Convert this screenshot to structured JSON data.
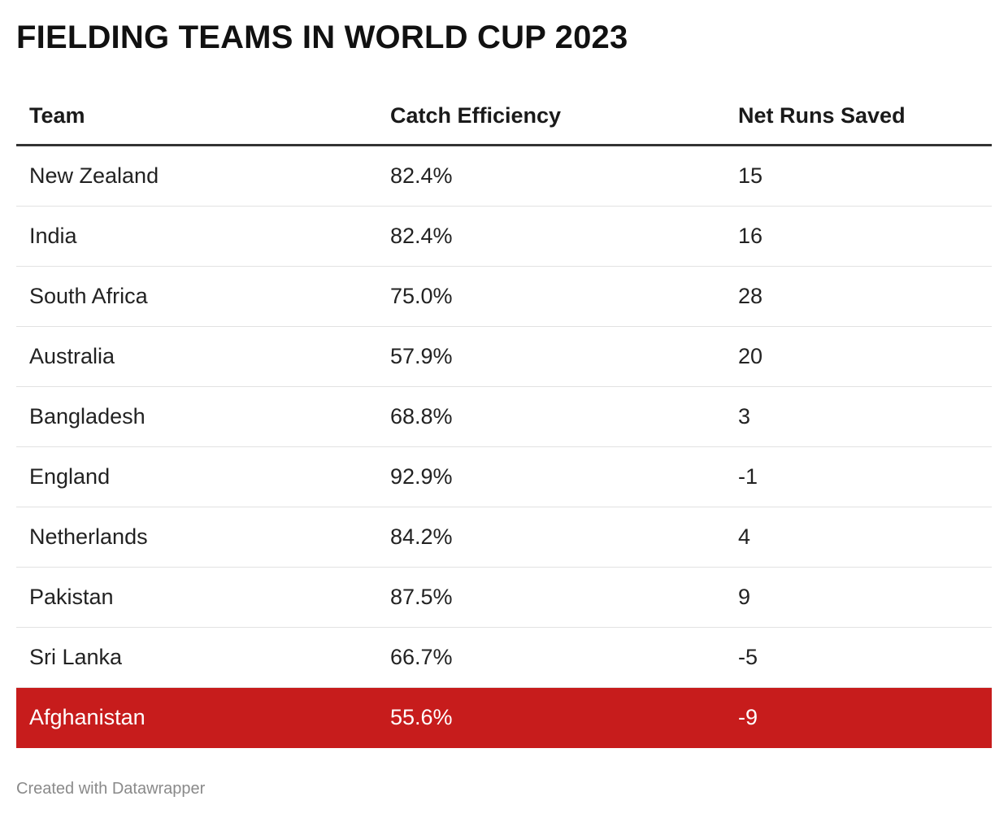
{
  "title": "FIELDING TEAMS IN WORLD CUP 2023",
  "footer": "Created with Datawrapper",
  "highlight_color": "#c71c1c",
  "chart_data": {
    "type": "table",
    "columns": [
      "Team",
      "Catch Efficiency",
      "Net Runs Saved"
    ],
    "rows": [
      {
        "team": "New Zealand",
        "catch_efficiency": "82.4%",
        "net_runs_saved": "15",
        "highlight": false
      },
      {
        "team": "India",
        "catch_efficiency": "82.4%",
        "net_runs_saved": "16",
        "highlight": false
      },
      {
        "team": "South Africa",
        "catch_efficiency": "75.0%",
        "net_runs_saved": "28",
        "highlight": false
      },
      {
        "team": "Australia",
        "catch_efficiency": "57.9%",
        "net_runs_saved": "20",
        "highlight": false
      },
      {
        "team": "Bangladesh",
        "catch_efficiency": "68.8%",
        "net_runs_saved": "3",
        "highlight": false
      },
      {
        "team": "England",
        "catch_efficiency": "92.9%",
        "net_runs_saved": "-1",
        "highlight": false
      },
      {
        "team": "Netherlands",
        "catch_efficiency": "84.2%",
        "net_runs_saved": "4",
        "highlight": false
      },
      {
        "team": "Pakistan",
        "catch_efficiency": "87.5%",
        "net_runs_saved": "9",
        "highlight": false
      },
      {
        "team": "Sri Lanka",
        "catch_efficiency": "66.7%",
        "net_runs_saved": "-5",
        "highlight": false
      },
      {
        "team": "Afghanistan",
        "catch_efficiency": "55.6%",
        "net_runs_saved": "-9",
        "highlight": true
      }
    ]
  }
}
